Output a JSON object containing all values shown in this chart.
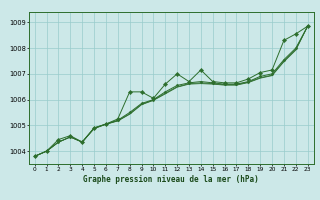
{
  "xlabel": "Graphe pression niveau de la mer (hPa)",
  "bg_color": "#cce8e8",
  "grid_color": "#99cccc",
  "line_color": "#2d6e2d",
  "x_ticks": [
    0,
    1,
    2,
    3,
    4,
    5,
    6,
    7,
    8,
    9,
    10,
    11,
    12,
    13,
    14,
    15,
    16,
    17,
    18,
    19,
    20,
    21,
    22,
    23
  ],
  "xlim": [
    -0.5,
    23.5
  ],
  "ylim": [
    1003.5,
    1009.4
  ],
  "yticks": [
    1004,
    1005,
    1006,
    1007,
    1008,
    1009
  ],
  "line1_x": [
    0,
    1,
    2,
    3,
    4,
    5,
    6,
    7,
    8,
    9,
    10,
    11,
    12,
    13,
    14,
    15,
    16,
    17,
    18,
    19,
    20,
    21,
    22,
    23
  ],
  "line1_y": [
    1003.8,
    1004.0,
    1004.45,
    1004.6,
    1004.35,
    1004.9,
    1005.05,
    1005.25,
    1006.3,
    1006.3,
    1006.05,
    1006.6,
    1007.0,
    1006.7,
    1007.15,
    1006.7,
    1006.65,
    1006.65,
    1006.8,
    1007.05,
    1007.15,
    1008.3,
    1008.55,
    1008.85
  ],
  "line2_x": [
    0,
    1,
    2,
    3,
    4,
    5,
    6,
    7,
    8,
    9,
    10,
    11,
    12,
    13,
    14,
    15,
    16,
    17,
    18,
    19,
    20,
    21,
    22,
    23
  ],
  "line2_y": [
    1003.8,
    1004.0,
    1004.35,
    1004.55,
    1004.35,
    1004.9,
    1005.05,
    1005.2,
    1005.5,
    1005.85,
    1006.0,
    1006.3,
    1006.55,
    1006.65,
    1006.7,
    1006.65,
    1006.6,
    1006.6,
    1006.7,
    1006.9,
    1007.0,
    1007.55,
    1008.0,
    1008.85
  ],
  "line3_x": [
    0,
    1,
    2,
    3,
    4,
    5,
    6,
    7,
    8,
    9,
    10,
    11,
    12,
    13,
    14,
    15,
    16,
    17,
    18,
    19,
    20,
    21,
    22,
    23
  ],
  "line3_y": [
    1003.8,
    1004.0,
    1004.35,
    1004.55,
    1004.35,
    1004.88,
    1005.05,
    1005.18,
    1005.45,
    1005.82,
    1005.98,
    1006.25,
    1006.5,
    1006.62,
    1006.65,
    1006.62,
    1006.58,
    1006.58,
    1006.68,
    1006.85,
    1006.95,
    1007.5,
    1007.95,
    1008.85
  ],
  "line4_x": [
    0,
    1,
    2,
    3,
    4,
    5,
    6,
    7,
    8,
    9,
    10,
    11,
    12,
    13,
    14,
    15,
    16,
    17,
    18,
    19,
    20,
    21,
    22,
    23
  ],
  "line4_y": [
    1003.8,
    1004.0,
    1004.35,
    1004.55,
    1004.35,
    1004.87,
    1005.04,
    1005.17,
    1005.43,
    1005.8,
    1005.97,
    1006.22,
    1006.48,
    1006.6,
    1006.62,
    1006.6,
    1006.56,
    1006.56,
    1006.66,
    1006.83,
    1006.93,
    1007.47,
    1007.92,
    1008.85
  ]
}
